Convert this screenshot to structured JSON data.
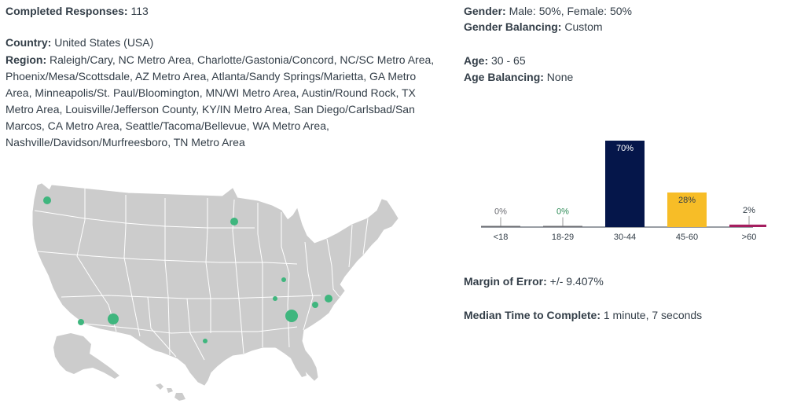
{
  "summary": {
    "completed_label": "Completed Responses:",
    "completed_value": "113",
    "country_label": "Country:",
    "country_value": "United States (USA)",
    "region_label": "Region:",
    "region_lines": [
      "Raleigh/Cary, NC Metro Area, Charlotte/Gastonia/Concord, NC/SC Metro Area,",
      "Phoenix/Mesa/Scottsdale, AZ Metro Area, Atlanta/Sandy Springs/Marietta, GA Metro",
      "Area, Minneapolis/St. Paul/Bloomington, MN/WI Metro Area, Austin/Round Rock, TX",
      "Metro Area, Louisville/Jefferson County, KY/IN Metro Area, San Diego/Carlsbad/San",
      "Marcos, CA Metro Area, Seattle/Tacoma/Bellevue, WA Metro Area,",
      "Nashville/Davidson/Murfreesboro, TN Metro Area"
    ]
  },
  "demographics": {
    "gender_label": "Gender:",
    "gender_value": "Male: 50%, Female: 50%",
    "gender_balancing_label": "Gender Balancing:",
    "gender_balancing_value": "Custom",
    "age_label": "Age:",
    "age_value": "30 - 65",
    "age_balancing_label": "Age Balancing:",
    "age_balancing_value": "None"
  },
  "stats": {
    "moe_label": "Margin of Error:",
    "moe_value": "+/- 9.407%",
    "median_label": "Median Time to Complete:",
    "median_value": "1 minute, 7 seconds"
  },
  "map": {
    "land_color": "#cccccc",
    "border_color": "#ffffff",
    "marker_color": "#3fb67e"
  },
  "chart_data": {
    "type": "bar",
    "categories": [
      "<18",
      "18-29",
      "30-44",
      "45-60",
      ">60"
    ],
    "values": [
      0,
      0,
      70,
      28,
      2
    ],
    "value_labels": [
      "0%",
      "0%",
      "70%",
      "28%",
      "2%"
    ],
    "colors": [
      "#6b6c72",
      "#6b6c72",
      "#05164a",
      "#f7bd27",
      "#a51e5f"
    ],
    "label_colors": [
      "#6b6c72",
      "#2e8b57",
      "#ffffff",
      "#333e48",
      "#333e48"
    ],
    "ylim": [
      0,
      70
    ]
  }
}
